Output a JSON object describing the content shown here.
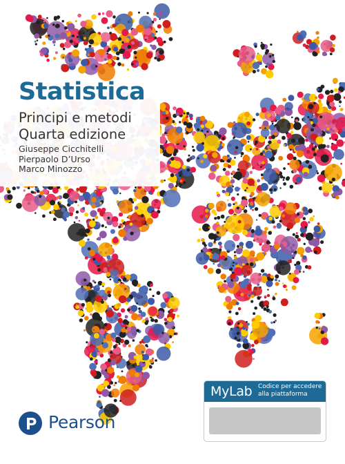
{
  "book": {
    "title": "Statistica",
    "subtitle": "Principi e metodi",
    "edition": "Quarta edizione",
    "authors": [
      "Giuseppe Cicchitelli",
      "Pierpaolo D’Urso",
      "Marco Minozzo"
    ]
  },
  "publisher": {
    "name": "Pearson",
    "logo_icon": "pearson-p-icon",
    "color": "#1d4f8c"
  },
  "access_card": {
    "brand": "MyLab",
    "note": "Codice per accedere alla piattaforma",
    "color": "#1d6a97"
  },
  "colors": {
    "title": "#1d6a97",
    "dot_palette": [
      "#e6194b",
      "#f07d00",
      "#f5a300",
      "#ffcc00",
      "#4f6fb6",
      "#3c5aa6",
      "#8e5aa8",
      "#e85c8a",
      "#d01e1e",
      "#222222"
    ]
  }
}
